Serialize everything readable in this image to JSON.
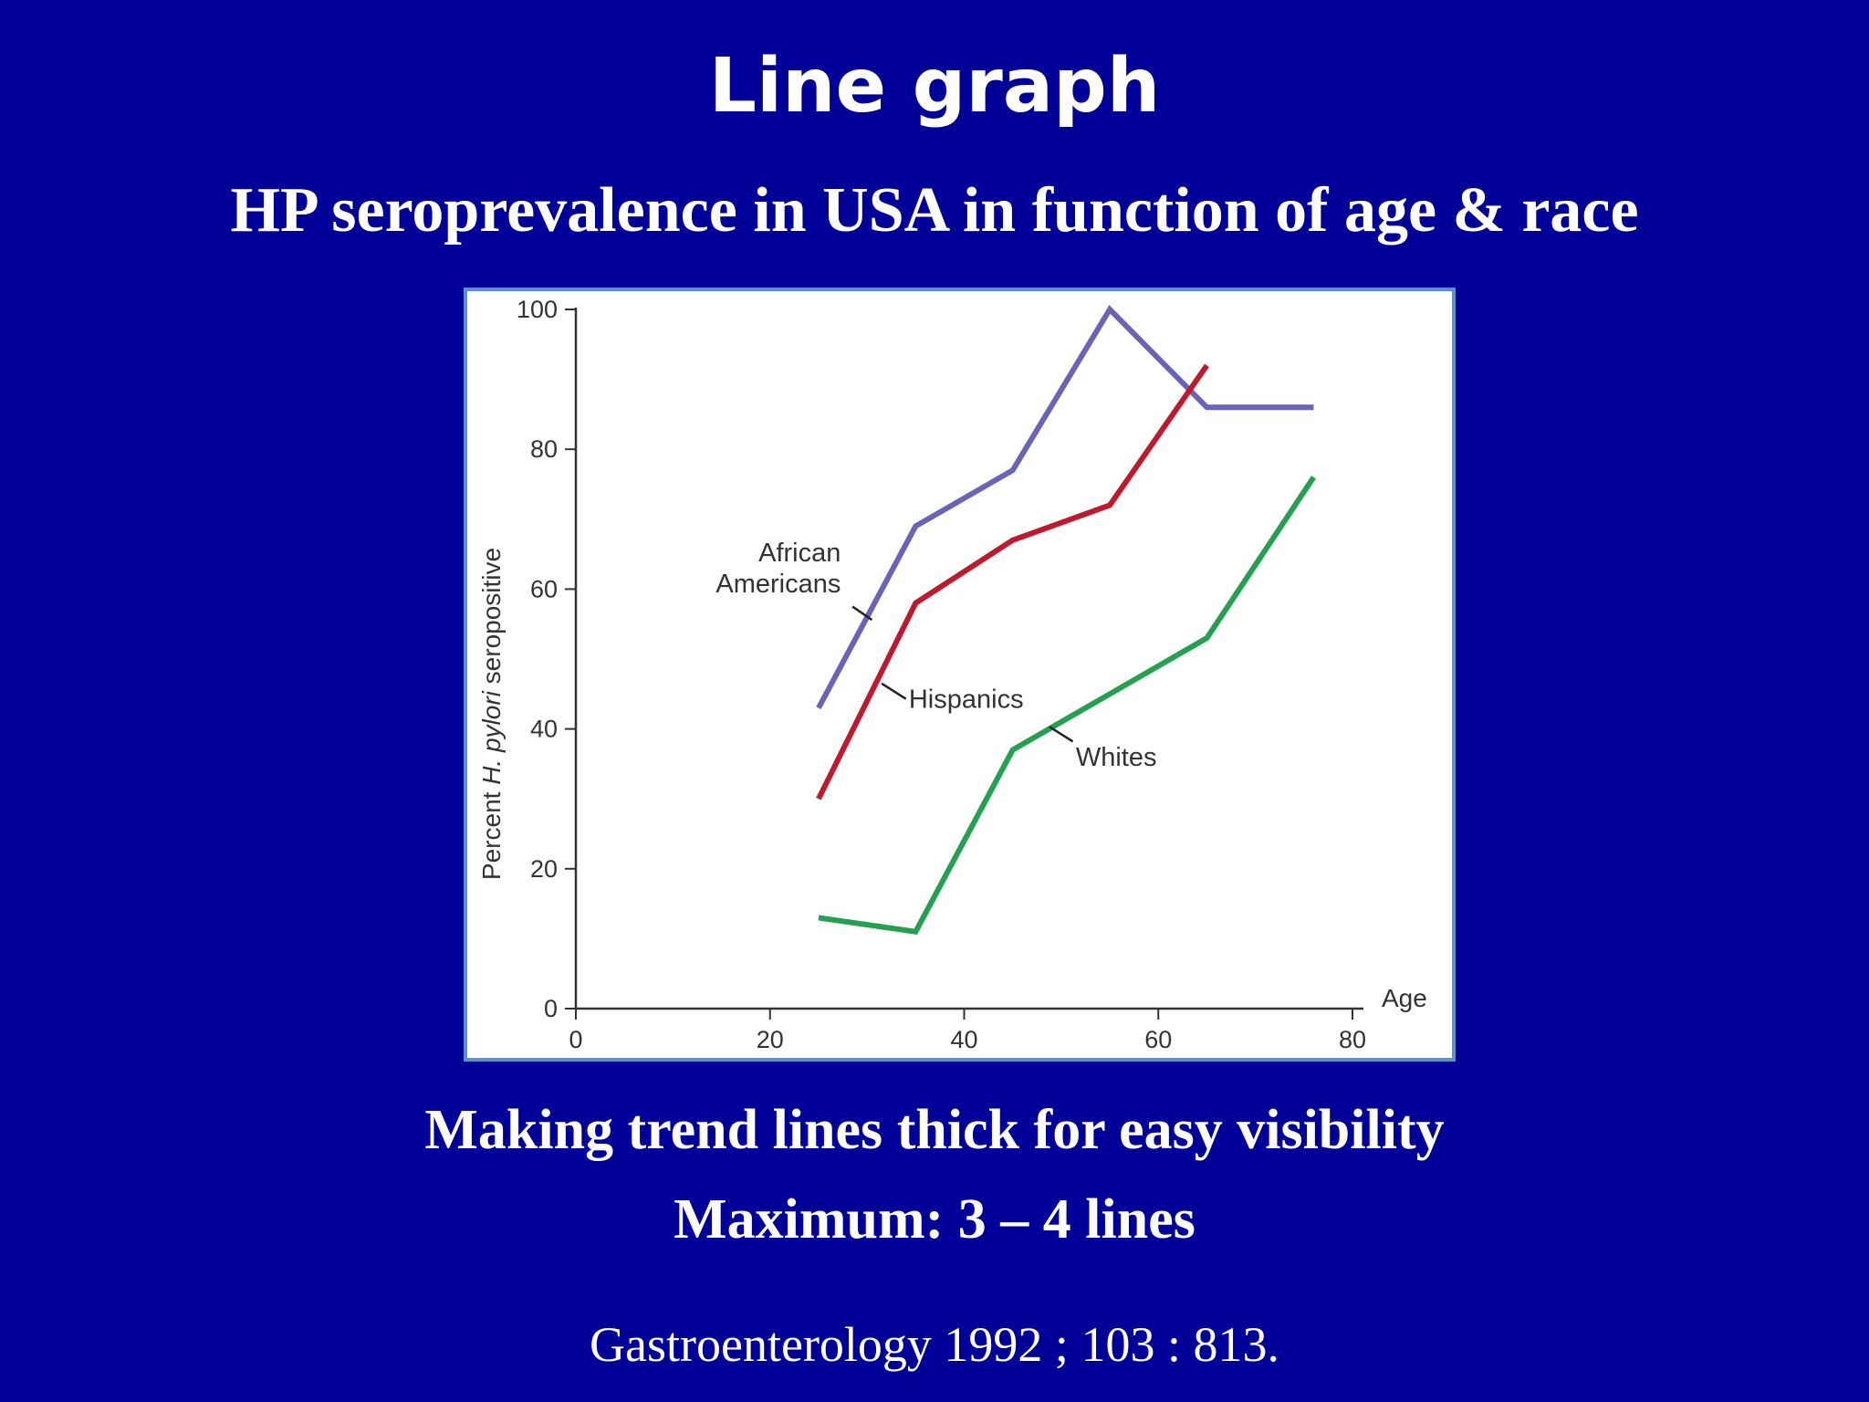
{
  "slide": {
    "title": "Line graph",
    "subtitle": "HP seroprevalence in USA in function of age & race",
    "note_1": "Making trend lines thick for easy visibility",
    "note_2": "Maximum:  3 – 4 lines",
    "citation": "Gastroenterology 1992 ; 103 : 813."
  },
  "chart_data": {
    "type": "line",
    "xlabel": "Age",
    "ylabel_prefix": "Percent ",
    "ylabel_italic": "H. pylori",
    "ylabel_suffix": " seropositive",
    "xlim": [
      0,
      80
    ],
    "ylim": [
      0,
      100
    ],
    "x_ticks": [
      0,
      20,
      40,
      60,
      80
    ],
    "y_ticks": [
      0,
      20,
      40,
      60,
      80,
      100
    ],
    "grid": false,
    "series": [
      {
        "name": "African Americans",
        "label_lines": [
          "African",
          "Americans"
        ],
        "color": "#6a63b8",
        "points": [
          [
            25,
            43
          ],
          [
            35,
            69
          ],
          [
            45,
            77
          ],
          [
            55,
            100
          ],
          [
            65,
            86
          ],
          [
            76,
            86
          ]
        ]
      },
      {
        "name": "Hispanics",
        "label_lines": [
          "Hispanics"
        ],
        "color": "#c0192e",
        "points": [
          [
            25,
            30
          ],
          [
            35,
            58
          ],
          [
            45,
            67
          ],
          [
            55,
            72
          ],
          [
            65,
            92
          ]
        ]
      },
      {
        "name": "Whites",
        "label_lines": [
          "Whites"
        ],
        "color": "#23a050",
        "points": [
          [
            25,
            13
          ],
          [
            35,
            11
          ],
          [
            45,
            37
          ],
          [
            55,
            45
          ],
          [
            65,
            53
          ],
          [
            76,
            76
          ]
        ]
      }
    ]
  }
}
